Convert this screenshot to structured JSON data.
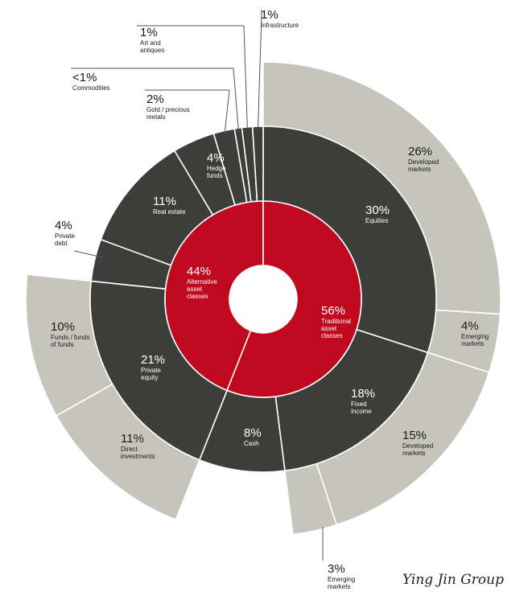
{
  "chart_data": {
    "type": "sunburst",
    "title": "",
    "colors": {
      "inner": "#c0091f",
      "middle": "#3d3d3b",
      "outer": "#c6c5bc",
      "text_light": "#ffffff",
      "text_dark": "#1a1a1a",
      "leader": "#555555"
    },
    "inner": [
      {
        "key": "alt",
        "pct": "44%",
        "value": 44,
        "label": [
          "Alternative",
          "asset",
          "classes"
        ]
      },
      {
        "key": "trad",
        "pct": "56%",
        "value": 56,
        "label": [
          "Traditional",
          "asset",
          "classes"
        ]
      }
    ],
    "middle": [
      {
        "key": "equities",
        "pct": "30%",
        "value": 30,
        "label": [
          "Equities"
        ],
        "parent": "trad"
      },
      {
        "key": "fixed_income",
        "pct": "18%",
        "value": 18,
        "label": [
          "Fixed",
          "income"
        ],
        "parent": "trad"
      },
      {
        "key": "cash",
        "pct": "8%",
        "value": 8,
        "label": [
          "Cash"
        ],
        "parent": "trad"
      },
      {
        "key": "private_equity",
        "pct": "21%",
        "value": 21,
        "label": [
          "Private",
          "equity"
        ],
        "parent": "alt"
      },
      {
        "key": "private_debt",
        "pct": "4%",
        "value": 4,
        "label": [
          "Private",
          "debt"
        ],
        "parent": "alt"
      },
      {
        "key": "real_estate",
        "pct": "11%",
        "value": 11,
        "label": [
          "Real estate"
        ],
        "parent": "alt"
      },
      {
        "key": "hedge_funds",
        "pct": "4%",
        "value": 4,
        "label": [
          "Hedge",
          "funds"
        ],
        "parent": "alt"
      },
      {
        "key": "gold",
        "pct": "2%",
        "value": 2,
        "label": [
          "Gold / precious",
          "metals"
        ],
        "parent": "alt"
      },
      {
        "key": "commodities",
        "pct": "<1%",
        "value": 0.7,
        "label": [
          "Commodities"
        ],
        "parent": "alt"
      },
      {
        "key": "art",
        "pct": "1%",
        "value": 1,
        "label": [
          "Art and",
          "antiques"
        ],
        "parent": "alt"
      },
      {
        "key": "infrastructure",
        "pct": "1%",
        "value": 1,
        "label": [
          "Infrastructure"
        ],
        "parent": "alt"
      }
    ],
    "outer": [
      {
        "key": "eq_dev",
        "pct": "26%",
        "value": 26,
        "label": [
          "Developed",
          "markets"
        ],
        "parent": "equities"
      },
      {
        "key": "eq_em",
        "pct": "4%",
        "value": 4,
        "label": [
          "Emerging",
          "markets"
        ],
        "parent": "equities"
      },
      {
        "key": "fi_dev",
        "pct": "15%",
        "value": 15,
        "label": [
          "Developed",
          "markets"
        ],
        "parent": "fixed_income"
      },
      {
        "key": "fi_em",
        "pct": "3%",
        "value": 3,
        "label": [
          "Emerging",
          "markets"
        ],
        "parent": "fixed_income"
      },
      {
        "key": "pe_direct",
        "pct": "11%",
        "value": 11,
        "label": [
          "Direct",
          "investments"
        ],
        "parent": "private_equity"
      },
      {
        "key": "pe_funds",
        "pct": "10%",
        "value": 10,
        "label": [
          "Funds / funds",
          "of funds"
        ],
        "parent": "private_equity"
      }
    ]
  },
  "watermark": "Ying Jin Group"
}
